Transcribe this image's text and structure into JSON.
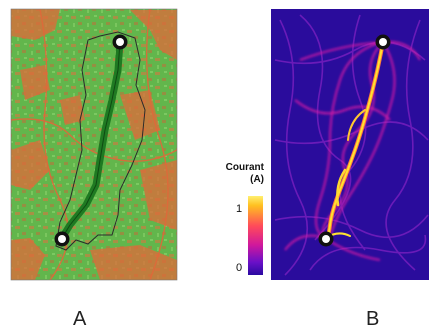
{
  "panels": {
    "a": {
      "label": "A"
    },
    "b": {
      "label": "B"
    }
  },
  "legend": {
    "title_line1": "Courant",
    "title_line2": "(A)",
    "tick_max": "1",
    "tick_min": "0"
  },
  "colors": {
    "land_green": "#5fb84b",
    "land_orange": "#e06a3a",
    "corridor_dark_green": "#1f7a22",
    "map_b_background": "#2a0c9c",
    "current_magenta": "#d21aa5",
    "current_yellow": "#ffe230"
  }
}
